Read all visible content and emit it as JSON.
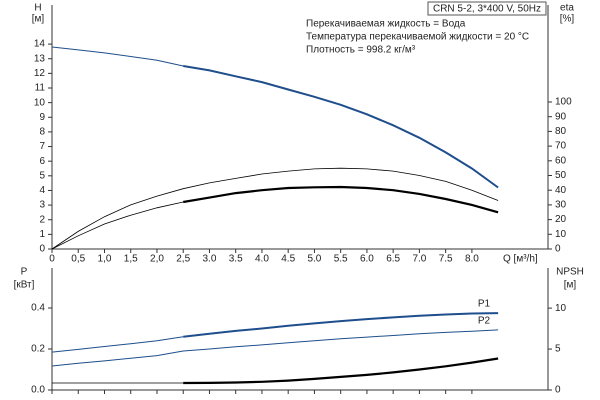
{
  "chart_data": [
    {
      "type": "line",
      "ylabel": "H",
      "yunit": "[м]",
      "y2label": "eta",
      "y2unit": "[%]",
      "xlabel": "Q [м³/h]",
      "box_title": "CRN 5-2, 3*400 V, 50Hz",
      "notes": [
        "Перекачиваемая жидкость = Вода",
        "Температура перекачиваемой жидкости = 20 °C",
        "Плотность = 998.2 кг/м³"
      ],
      "x": [
        0,
        0.5,
        1,
        1.5,
        2,
        2.5,
        3,
        3.5,
        4,
        4.5,
        5,
        5.5,
        6,
        6.5,
        7,
        7.5,
        8,
        8.5
      ],
      "xlim": [
        0,
        9.45
      ],
      "xticks": [
        0,
        {
          "value": 0.5,
          "label": "0,5"
        },
        {
          "value": 1,
          "label": "1,0"
        },
        {
          "value": 1.5,
          "label": "1,5"
        },
        {
          "value": 2,
          "label": "2,0"
        },
        {
          "value": 2.5,
          "label": "2,5"
        },
        {
          "value": 3,
          "label": "3.0"
        },
        3.5,
        {
          "value": 4,
          "label": "4.0"
        },
        4.5,
        {
          "value": 5,
          "label": "5.0"
        },
        5.5,
        {
          "value": 6,
          "label": "6.0"
        },
        6.5,
        {
          "value": 7,
          "label": "7.0"
        },
        7.5,
        {
          "value": 8,
          "label": "8.0"
        }
      ],
      "ylim": [
        0,
        16.67
      ],
      "yticks": [
        0,
        1,
        2,
        3,
        4,
        5,
        6,
        7,
        8,
        9,
        10,
        11,
        12,
        13,
        14
      ],
      "y2lim": [
        0,
        166
      ],
      "y2ticks": [
        0,
        10,
        20,
        30,
        40,
        50,
        60,
        70,
        80,
        90,
        100
      ],
      "grid": false,
      "series": [
        {
          "color": "#1f4e8c",
          "width": 1,
          "values": [
            13.8,
            13.6,
            13.4,
            13.15,
            12.9,
            12.5,
            null,
            null,
            null,
            null,
            null,
            null,
            null,
            null,
            null,
            null,
            null,
            null
          ]
        },
        {
          "color": "#1f4e8c",
          "width": 2,
          "values": [
            null,
            null,
            null,
            null,
            null,
            12.5,
            12.2,
            11.8,
            11.4,
            10.9,
            10.4,
            9.85,
            9.2,
            8.45,
            7.6,
            6.6,
            5.5,
            4.2
          ]
        },
        {
          "color": "#000000",
          "width": 0.8,
          "axis": "y2",
          "values": [
            0,
            12,
            22,
            30,
            36,
            41,
            45,
            48,
            51,
            53,
            54.5,
            55,
            54.5,
            53,
            50,
            46,
            40,
            33
          ]
        },
        {
          "color": "#000000",
          "width": 0.8,
          "axis": "y2",
          "values": [
            0,
            9,
            17,
            23,
            28,
            32,
            null,
            null,
            null,
            null,
            null,
            null,
            null,
            null,
            null,
            null,
            null,
            null
          ]
        },
        {
          "color": "#000000",
          "width": 2.2,
          "axis": "y2",
          "values": [
            null,
            null,
            null,
            null,
            null,
            32,
            35,
            38,
            40,
            41.5,
            42,
            42.2,
            41.5,
            40,
            37.5,
            34,
            30,
            25
          ]
        }
      ]
    },
    {
      "type": "line",
      "ylabel": "P",
      "yunit": "[кВт]",
      "y2label": "NPSH",
      "y2unit": "[м]",
      "x": [
        0,
        0.5,
        1,
        1.5,
        2,
        2.5,
        3,
        3.5,
        4,
        4.5,
        5,
        5.5,
        6,
        6.5,
        7,
        7.5,
        8,
        8.5
      ],
      "xlim": [
        0,
        9.45
      ],
      "xticks": [
        0,
        0.5,
        1,
        1.5,
        2,
        2.5,
        3,
        3.5,
        4,
        4.5,
        5,
        5.5,
        6,
        6.5,
        7,
        7.5,
        8
      ],
      "ylim": [
        0,
        0.595
      ],
      "yticks": [
        {
          "value": 0,
          "label": "0.0"
        },
        {
          "value": 0.2,
          "label": "0.2"
        },
        {
          "value": 0.4,
          "label": "0.4"
        }
      ],
      "y2lim": [
        0,
        14.9
      ],
      "y2ticks": [
        0,
        5,
        10
      ],
      "grid": false,
      "series": [
        {
          "color": "#1f4e8c",
          "width": 1,
          "values": [
            0.185,
            0.198,
            0.212,
            0.226,
            0.24,
            0.26,
            null,
            null,
            null,
            null,
            null,
            null,
            null,
            null,
            null,
            null,
            null,
            null
          ]
        },
        {
          "name": "P1",
          "color": "#1f4e8c",
          "width": 2,
          "values": [
            null,
            null,
            null,
            null,
            null,
            0.26,
            0.274,
            0.288,
            0.3,
            0.313,
            0.325,
            0.336,
            0.346,
            0.354,
            0.362,
            0.368,
            0.373,
            0.375
          ]
        },
        {
          "name": "P2",
          "color": "#1f4e8c",
          "width": 1,
          "values": [
            0.117,
            0.13,
            0.142,
            0.155,
            0.168,
            0.19,
            0.2,
            0.211,
            0.22,
            0.23,
            0.24,
            0.25,
            0.258,
            0.266,
            0.274,
            0.281,
            0.287,
            0.293
          ]
        },
        {
          "color": "#000000",
          "width": 0.8,
          "axis": "y2",
          "values": [
            0.85,
            0.85,
            0.85,
            0.85,
            0.85,
            0.85,
            null,
            null,
            null,
            null,
            null,
            null,
            null,
            null,
            null,
            null,
            null,
            null
          ]
        },
        {
          "color": "#000000",
          "width": 2.2,
          "axis": "y2",
          "values": [
            null,
            null,
            null,
            null,
            null,
            0.85,
            0.87,
            0.92,
            1.0,
            1.15,
            1.35,
            1.6,
            1.85,
            2.15,
            2.5,
            2.9,
            3.35,
            3.85
          ]
        }
      ]
    }
  ]
}
